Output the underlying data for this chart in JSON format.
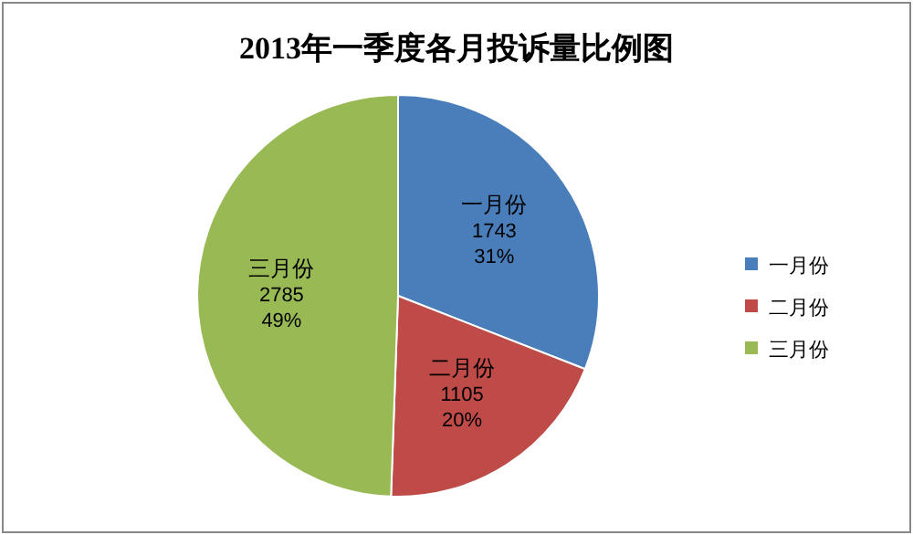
{
  "chart_data": {
    "type": "pie",
    "title": "2013年一季度各月投诉量比例图",
    "categories": [
      "一月份",
      "二月份",
      "三月份"
    ],
    "values": [
      1743,
      1105,
      2785
    ],
    "colors": [
      "#4a7ebb",
      "#be4b48",
      "#98b954"
    ],
    "value_labels": [
      "1743\n31%",
      "1105\n20%",
      "2785\n49%"
    ],
    "legend": "right"
  }
}
